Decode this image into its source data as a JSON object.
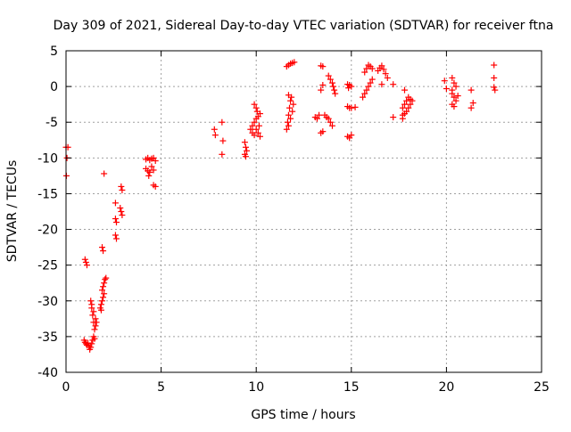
{
  "chart_data": {
    "type": "scatter",
    "title": "Day 309 of 2021, Sidereal Day-to-day VTEC variation (SDTVAR) for receiver ftna",
    "xlabel": "GPS time / hours",
    "ylabel": "SDTVAR / TECUs",
    "xlim": [
      0,
      25
    ],
    "ylim": [
      -40,
      5
    ],
    "x_ticks": [
      0,
      5,
      10,
      15,
      20,
      25
    ],
    "x_tick_labels": [
      "0",
      "5",
      "10",
      "15",
      "20",
      "25"
    ],
    "y_ticks": [
      5,
      0,
      -5,
      -10,
      -15,
      -20,
      -25,
      -30,
      -35,
      -40
    ],
    "y_tick_labels": [
      "5",
      "0",
      "-5",
      "-10",
      "-15",
      "-20",
      "-25",
      "-30",
      "-35",
      "-40"
    ],
    "grid": true,
    "marker": "+",
    "marker_color": "#ff0000",
    "series": [
      {
        "name": "SDTVAR",
        "points": [
          [
            0.0,
            -8.5
          ],
          [
            0.1,
            -8.5
          ],
          [
            0.05,
            -10.0
          ],
          [
            0.02,
            -12.5
          ],
          [
            1.0,
            -24.2
          ],
          [
            1.05,
            -24.6
          ],
          [
            1.1,
            -25.0
          ],
          [
            0.95,
            -35.5
          ],
          [
            1.0,
            -35.8
          ],
          [
            1.05,
            -36.0
          ],
          [
            1.1,
            -36.2
          ],
          [
            1.15,
            -35.9
          ],
          [
            1.2,
            -36.3
          ],
          [
            1.25,
            -36.8
          ],
          [
            1.3,
            -36.5
          ],
          [
            1.35,
            -36.0
          ],
          [
            1.4,
            -35.5
          ],
          [
            1.45,
            -35.0
          ],
          [
            1.5,
            -35.3
          ],
          [
            1.3,
            -30.0
          ],
          [
            1.35,
            -31.0
          ],
          [
            1.4,
            -32.0
          ],
          [
            1.45,
            -33.0
          ],
          [
            1.5,
            -34.0
          ],
          [
            1.55,
            -33.5
          ],
          [
            1.35,
            -30.5
          ],
          [
            1.45,
            -31.5
          ],
          [
            1.55,
            -32.5
          ],
          [
            1.6,
            -33.0
          ],
          [
            1.8,
            -31.0
          ],
          [
            1.85,
            -30.5
          ],
          [
            1.9,
            -30.0
          ],
          [
            1.95,
            -29.5
          ],
          [
            2.0,
            -29.0
          ],
          [
            1.85,
            -31.3
          ],
          [
            1.9,
            -28.5
          ],
          [
            1.95,
            -28.0
          ],
          [
            2.0,
            -27.5
          ],
          [
            2.05,
            -27.0
          ],
          [
            2.1,
            -26.8
          ],
          [
            1.9,
            -22.5
          ],
          [
            1.95,
            -23.0
          ],
          [
            2.0,
            -12.2
          ],
          [
            2.6,
            -16.3
          ],
          [
            2.6,
            -18.5
          ],
          [
            2.65,
            -19.0
          ],
          [
            2.6,
            -20.8
          ],
          [
            2.65,
            -21.3
          ],
          [
            2.9,
            -14.0
          ],
          [
            2.95,
            -14.5
          ],
          [
            2.85,
            -17.0
          ],
          [
            2.9,
            -17.5
          ],
          [
            2.95,
            -18.0
          ],
          [
            4.2,
            -10.2
          ],
          [
            4.3,
            -10.0
          ],
          [
            4.4,
            -10.3
          ],
          [
            4.5,
            -10.1
          ],
          [
            4.6,
            -10.0
          ],
          [
            4.7,
            -10.4
          ],
          [
            4.2,
            -11.5
          ],
          [
            4.3,
            -11.8
          ],
          [
            4.4,
            -12.0
          ],
          [
            4.35,
            -12.5
          ],
          [
            4.5,
            -11.2
          ],
          [
            4.6,
            -11.7
          ],
          [
            4.6,
            -13.8
          ],
          [
            4.7,
            -14.0
          ],
          [
            7.8,
            -6.0
          ],
          [
            7.85,
            -6.8
          ],
          [
            8.2,
            -5.0
          ],
          [
            8.25,
            -7.6
          ],
          [
            8.2,
            -9.5
          ],
          [
            9.4,
            -7.8
          ],
          [
            9.45,
            -8.5
          ],
          [
            9.5,
            -9.0
          ],
          [
            9.4,
            -9.5
          ],
          [
            9.45,
            -9.8
          ],
          [
            9.7,
            -6.0
          ],
          [
            9.8,
            -5.5
          ],
          [
            9.9,
            -5.0
          ],
          [
            10.0,
            -4.5
          ],
          [
            10.1,
            -4.2
          ],
          [
            10.2,
            -3.8
          ],
          [
            9.8,
            -6.5
          ],
          [
            9.9,
            -6.8
          ],
          [
            10.0,
            -6.0
          ],
          [
            10.1,
            -6.5
          ],
          [
            10.2,
            -7.0
          ],
          [
            10.15,
            -5.5
          ],
          [
            9.9,
            -2.5
          ],
          [
            10.0,
            -3.0
          ],
          [
            10.05,
            -3.5
          ],
          [
            11.6,
            -6.0
          ],
          [
            11.65,
            -5.0
          ],
          [
            11.7,
            -4.0
          ],
          [
            11.75,
            -3.0
          ],
          [
            11.8,
            -2.0
          ],
          [
            11.85,
            -1.5
          ],
          [
            11.7,
            -5.5
          ],
          [
            11.8,
            -4.5
          ],
          [
            11.9,
            -3.5
          ],
          [
            11.95,
            -2.5
          ],
          [
            11.7,
            -1.2
          ],
          [
            11.6,
            2.8
          ],
          [
            11.7,
            3.0
          ],
          [
            11.8,
            3.2
          ],
          [
            11.9,
            3.3
          ],
          [
            12.0,
            3.4
          ],
          [
            13.1,
            -4.3
          ],
          [
            13.2,
            -4.5
          ],
          [
            13.3,
            -4.0
          ],
          [
            13.4,
            -6.5
          ],
          [
            13.5,
            -6.3
          ],
          [
            13.4,
            2.9
          ],
          [
            13.5,
            2.8
          ],
          [
            13.4,
            -0.5
          ],
          [
            13.5,
            0.2
          ],
          [
            13.6,
            -4.0
          ],
          [
            13.7,
            -4.3
          ],
          [
            13.8,
            -4.5
          ],
          [
            13.9,
            -5.0
          ],
          [
            14.0,
            -5.5
          ],
          [
            13.8,
            1.5
          ],
          [
            13.9,
            1.0
          ],
          [
            14.0,
            0.5
          ],
          [
            14.05,
            0.0
          ],
          [
            14.1,
            -0.5
          ],
          [
            14.15,
            -1.0
          ],
          [
            14.8,
            0.3
          ],
          [
            14.9,
            0.2
          ],
          [
            15.0,
            0.0
          ],
          [
            14.85,
            -0.2
          ],
          [
            14.8,
            -2.8
          ],
          [
            14.9,
            -3.0
          ],
          [
            15.0,
            -3.0
          ],
          [
            15.2,
            -2.9
          ],
          [
            14.8,
            -7.0
          ],
          [
            14.9,
            -7.2
          ],
          [
            15.0,
            -6.8
          ],
          [
            15.6,
            -1.5
          ],
          [
            15.7,
            -1.0
          ],
          [
            15.8,
            -0.5
          ],
          [
            15.9,
            0.0
          ],
          [
            16.0,
            0.5
          ],
          [
            16.1,
            1.0
          ],
          [
            15.7,
            2.0
          ],
          [
            15.8,
            2.5
          ],
          [
            15.9,
            3.0
          ],
          [
            16.0,
            2.8
          ],
          [
            16.1,
            2.5
          ],
          [
            16.4,
            2.2
          ],
          [
            16.5,
            2.6
          ],
          [
            16.6,
            2.9
          ],
          [
            16.7,
            2.4
          ],
          [
            16.8,
            1.8
          ],
          [
            16.9,
            1.2
          ],
          [
            16.6,
            0.3
          ],
          [
            17.2,
            0.3
          ],
          [
            17.2,
            -4.3
          ],
          [
            17.8,
            -0.5
          ],
          [
            17.7,
            -4.5
          ],
          [
            17.7,
            -3.0
          ],
          [
            17.8,
            -2.5
          ],
          [
            17.9,
            -2.0
          ],
          [
            18.0,
            -1.5
          ],
          [
            18.1,
            -1.8
          ],
          [
            17.7,
            -4.0
          ],
          [
            17.8,
            -3.8
          ],
          [
            17.9,
            -3.5
          ],
          [
            18.0,
            -3.0
          ],
          [
            18.1,
            -2.5
          ],
          [
            18.2,
            -2.0
          ],
          [
            19.9,
            0.8
          ],
          [
            20.0,
            -0.3
          ],
          [
            20.3,
            1.2
          ],
          [
            20.4,
            0.5
          ],
          [
            20.5,
            0.0
          ],
          [
            20.3,
            -0.5
          ],
          [
            20.3,
            -1.0
          ],
          [
            20.4,
            -1.5
          ],
          [
            20.5,
            -2.0
          ],
          [
            20.3,
            -2.5
          ],
          [
            20.4,
            -2.8
          ],
          [
            20.6,
            -1.3
          ],
          [
            21.3,
            -0.5
          ],
          [
            21.4,
            -2.3
          ],
          [
            21.3,
            -3.0
          ],
          [
            22.5,
            3.0
          ],
          [
            22.5,
            1.2
          ],
          [
            22.5,
            -0.1
          ],
          [
            22.55,
            -0.5
          ]
        ]
      }
    ]
  }
}
